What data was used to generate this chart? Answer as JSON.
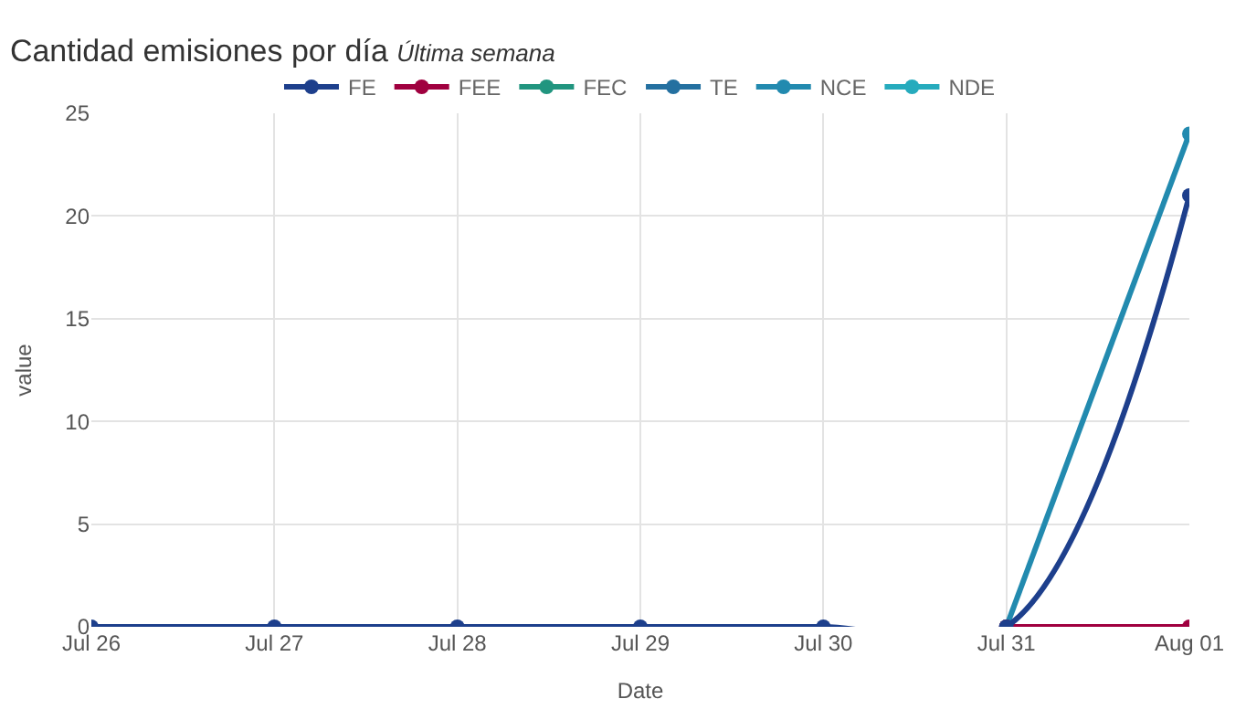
{
  "chart_data": {
    "type": "line",
    "title": "Cantidad emisiones por día",
    "subtitle": "Última semana",
    "xlabel": "Date",
    "ylabel": "value",
    "categories": [
      "Jul 26",
      "Jul 27",
      "Jul 28",
      "Jul 29",
      "Jul 30",
      "Jul 31",
      "Aug 01"
    ],
    "series": [
      {
        "name": "FE",
        "color": "#1d3f8c",
        "values": [
          0,
          0,
          0,
          0,
          0,
          0,
          21
        ]
      },
      {
        "name": "FEE",
        "color": "#a0003f",
        "values": [
          null,
          null,
          null,
          null,
          null,
          0,
          0
        ]
      },
      {
        "name": "FEC",
        "color": "#21957f",
        "values": [
          null,
          null,
          null,
          null,
          null,
          null,
          null
        ]
      },
      {
        "name": "TE",
        "color": "#2470a0",
        "values": [
          null,
          null,
          null,
          null,
          null,
          null,
          null
        ]
      },
      {
        "name": "NCE",
        "color": "#228aaf",
        "values": [
          null,
          null,
          null,
          null,
          null,
          0,
          24
        ]
      },
      {
        "name": "NDE",
        "color": "#26abbd",
        "values": [
          null,
          null,
          null,
          null,
          null,
          null,
          null
        ]
      }
    ],
    "ylim": [
      0,
      25
    ],
    "yticks": [
      0,
      5,
      10,
      15,
      20,
      25
    ],
    "grid": true,
    "legend": "top",
    "marker": "circle",
    "line_style": "solid"
  }
}
